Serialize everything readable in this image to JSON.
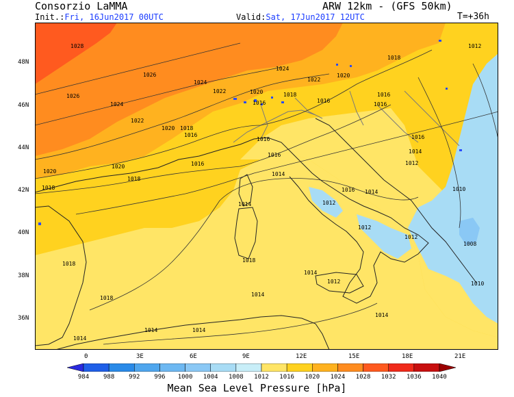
{
  "header": {
    "left_title": "Consorzio LaMMA",
    "right_title": "ARW 12km - (GFS 50km)",
    "init_label": "Init.:",
    "init_value": "Fri, 16Jun2017 00UTC",
    "valid_label": "Valid:",
    "valid_value": "Sat, 17Jun2017 12UTC",
    "lead_time": "T=+36h"
  },
  "map": {
    "lat_labels": [
      "48N",
      "46N",
      "44N",
      "42N",
      "40N",
      "38N",
      "36N"
    ],
    "lon_labels": [
      "0",
      "3E",
      "6E",
      "9E",
      "12E",
      "15E",
      "18E",
      "21E"
    ],
    "contour_labels": [
      "1028",
      "1026",
      "1026",
      "1024",
      "1024",
      "1024",
      "1022",
      "1022",
      "1022",
      "1020",
      "1020",
      "1020",
      "1020",
      "1018",
      "1018",
      "1018",
      "1018",
      "1018",
      "1018",
      "1018",
      "1018",
      "1016",
      "1016",
      "1016",
      "1016",
      "1016",
      "1016",
      "1016",
      "1016",
      "1016",
      "1014",
      "1014",
      "1014",
      "1014",
      "1014",
      "1014",
      "1014",
      "1014",
      "1014",
      "1014",
      "1012",
      "1012",
      "1012",
      "1012",
      "1012",
      "1012",
      "1010",
      "1010",
      "1008",
      "1020",
      "1016"
    ]
  },
  "colorbar": {
    "ticks": [
      "984",
      "988",
      "992",
      "996",
      "1000",
      "1004",
      "1008",
      "1012",
      "1016",
      "1020",
      "1024",
      "1028",
      "1032",
      "1036",
      "1040"
    ],
    "colors": [
      "#2a2adf",
      "#1f5fe8",
      "#2a8ae8",
      "#4fa6ee",
      "#6db8f2",
      "#8ac8f5",
      "#a8dcf5",
      "#c8eef8",
      "#ffe566",
      "#ffd21f",
      "#ffb21f",
      "#ff8c1f",
      "#ff5a1f",
      "#f02a1a",
      "#c80f0f",
      "#9a0000"
    ],
    "title": "Mean Sea Level Pressure [hPa]"
  },
  "palette": {
    "land_lines": "#222222",
    "border_lines": "#7a7a7a",
    "lakes": "#2a4cff"
  }
}
